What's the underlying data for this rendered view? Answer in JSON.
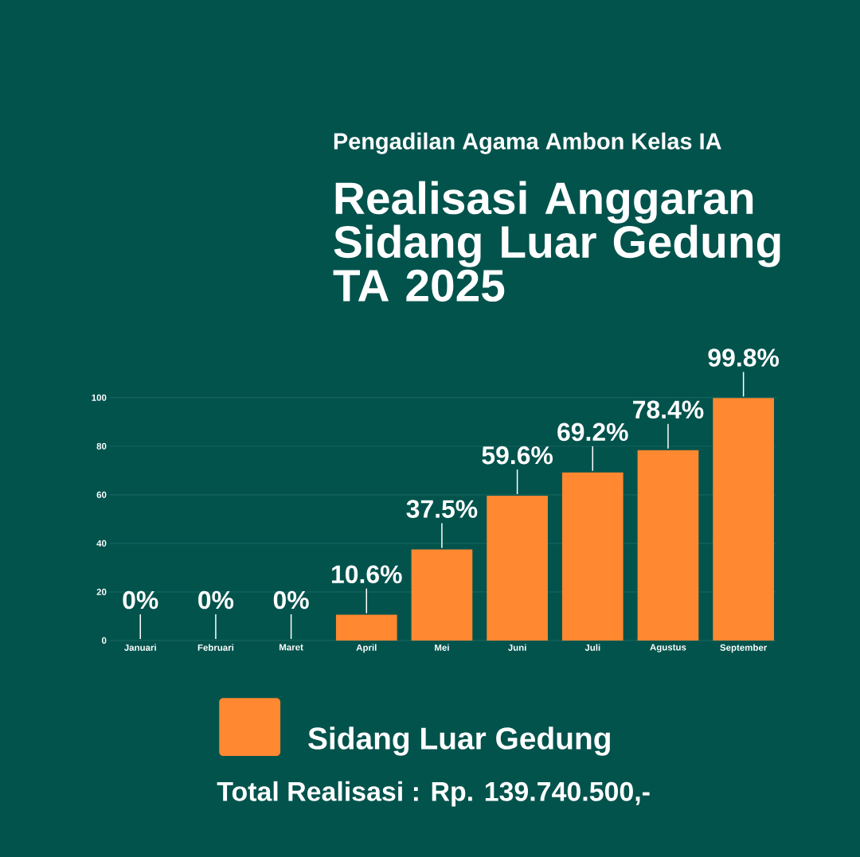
{
  "chart_data": {
    "type": "bar",
    "subtitle": "Pengadilan Agama Ambon Kelas IA",
    "title": "Realisasi Anggaran Sidang Luar Gedung TA 2025",
    "categories": [
      "Januari",
      "Februari",
      "Maret",
      "April",
      "Mei",
      "Juni",
      "Juli",
      "Agustus",
      "September"
    ],
    "series": [
      {
        "name": "Sidang Luar Gedung",
        "color": "#ff8830",
        "values": [
          0,
          0,
          0,
          10.6,
          37.5,
          59.6,
          69.2,
          78.4,
          99.8
        ],
        "value_labels": [
          "0%",
          "0%",
          "0%",
          "10.6%",
          "37.5%",
          "59.6%",
          "69.2%",
          "78.4%",
          "99.8%"
        ]
      }
    ],
    "ylim": [
      0,
      100
    ],
    "yticks": [
      0,
      20,
      40,
      60,
      80,
      100
    ],
    "grid": "y",
    "legend": "bottom",
    "annotations": [
      "Total Realisasi : Rp. 139.740.500,-"
    ]
  }
}
